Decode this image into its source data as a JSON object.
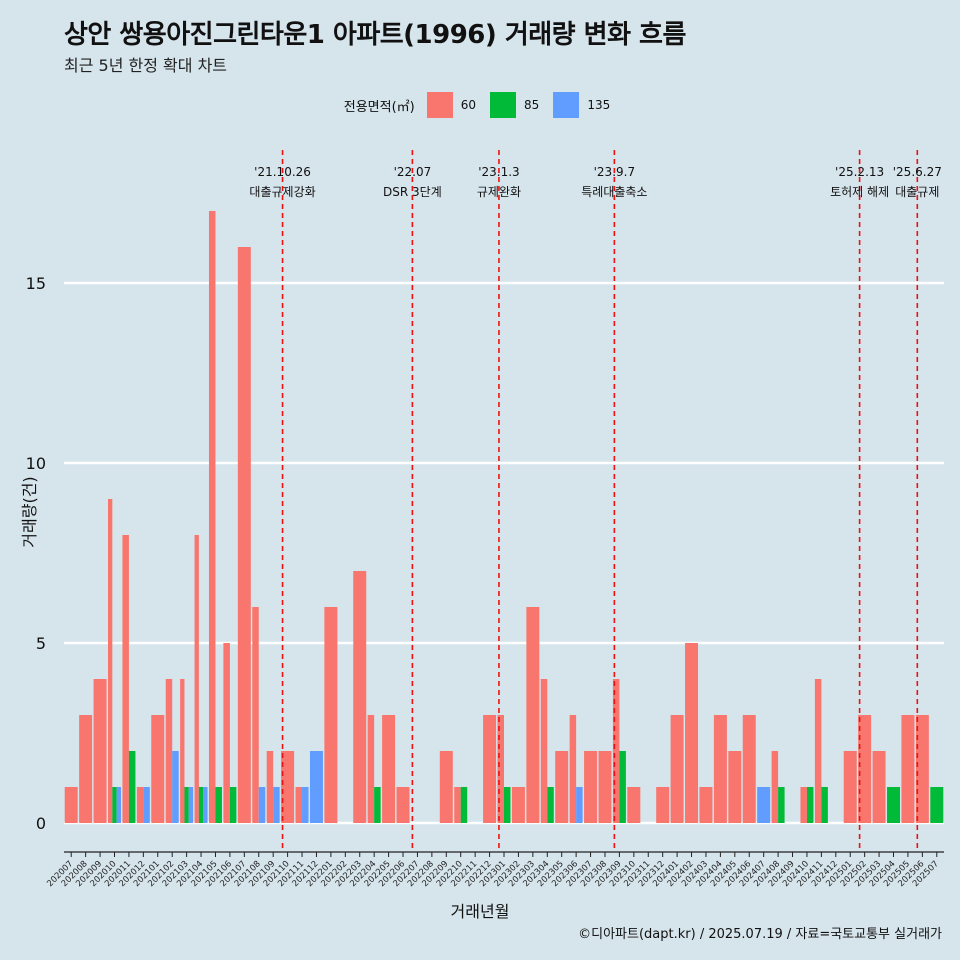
{
  "title": "상안 쌍용아진그린타운1 아파트(1996) 거래량 변화 흐름",
  "subtitle": "최근 5년 한정 확대 차트",
  "caption": "©디아파트(dapt.kr) / 2025.07.19 / 자료=국토교통부 실거래가",
  "legend": {
    "title": "전용면적(㎡)",
    "items": [
      {
        "label": "60",
        "color": "#F8766D"
      },
      {
        "label": "85",
        "color": "#00BA38"
      },
      {
        "label": "135",
        "color": "#619CFF"
      }
    ]
  },
  "chart_data": {
    "type": "bar",
    "xlabel": "거래년월",
    "ylabel": "거래량(건)",
    "ylim": [
      0,
      17.5
    ],
    "yticks": [
      0,
      5,
      10,
      15
    ],
    "grid": true,
    "legend_position": "top",
    "categories": [
      "202007",
      "202008",
      "202009",
      "202010",
      "202011",
      "202012",
      "202101",
      "202102",
      "202103",
      "202104",
      "202105",
      "202106",
      "202107",
      "202108",
      "202109",
      "202110",
      "202111",
      "202112",
      "202201",
      "202202",
      "202203",
      "202204",
      "202205",
      "202206",
      "202207",
      "202208",
      "202209",
      "202210",
      "202211",
      "202212",
      "202301",
      "202302",
      "202303",
      "202304",
      "202305",
      "202306",
      "202307",
      "202308",
      "202309",
      "202310",
      "202311",
      "202312",
      "202401",
      "202402",
      "202403",
      "202404",
      "202405",
      "202406",
      "202407",
      "202408",
      "202409",
      "202410",
      "202411",
      "202412",
      "202501",
      "202502",
      "202503",
      "202504",
      "202505",
      "202506",
      "202507"
    ],
    "series": [
      {
        "name": "60",
        "color": "#F8766D",
        "values": [
          1,
          3,
          4,
          9,
          8,
          1,
          3,
          4,
          4,
          8,
          17,
          5,
          16,
          6,
          2,
          2,
          1,
          0,
          6,
          0,
          7,
          3,
          3,
          1,
          0,
          0,
          2,
          1,
          0,
          3,
          3,
          1,
          6,
          4,
          2,
          3,
          2,
          2,
          4,
          1,
          0,
          1,
          3,
          5,
          1,
          3,
          2,
          3,
          0,
          2,
          0,
          1,
          4,
          0,
          2,
          3,
          2,
          0,
          3,
          3,
          0
        ]
      },
      {
        "name": "85",
        "color": "#00BA38",
        "values": [
          0,
          0,
          0,
          1,
          2,
          0,
          0,
          0,
          1,
          1,
          1,
          1,
          0,
          0,
          0,
          0,
          0,
          0,
          0,
          0,
          0,
          1,
          0,
          0,
          0,
          0,
          0,
          1,
          0,
          0,
          1,
          0,
          0,
          1,
          0,
          0,
          0,
          0,
          2,
          0,
          0,
          0,
          0,
          0,
          0,
          0,
          0,
          0,
          0,
          1,
          0,
          1,
          1,
          0,
          0,
          0,
          0,
          1,
          0,
          0,
          1
        ]
      },
      {
        "name": "135",
        "color": "#619CFF",
        "values": [
          0,
          0,
          0,
          1,
          0,
          1,
          0,
          2,
          1,
          1,
          0,
          0,
          0,
          1,
          1,
          0,
          1,
          2,
          0,
          0,
          0,
          0,
          0,
          0,
          0,
          0,
          0,
          0,
          0,
          0,
          0,
          0,
          0,
          0,
          0,
          1,
          0,
          0,
          0,
          0,
          0,
          0,
          0,
          0,
          0,
          0,
          0,
          0,
          1,
          0,
          0,
          0,
          0,
          0,
          0,
          0,
          0,
          0,
          0,
          0,
          0
        ]
      }
    ],
    "annotations": [
      {
        "month": "202110",
        "date": "'21.10.26",
        "label": "대출규제강화"
      },
      {
        "month": "202207",
        "date": "'22.07",
        "label": "DSR 3단계"
      },
      {
        "month": "202301",
        "date": "'23.1.3",
        "label": "규제완화"
      },
      {
        "month": "202309",
        "date": "'23.9.7",
        "label": "특례대출축소"
      },
      {
        "month": "202502",
        "date": "'25.2.13",
        "label": "토허제 해제"
      },
      {
        "month": "202506",
        "date": "'25.6.27",
        "label": "대출규제"
      }
    ]
  }
}
